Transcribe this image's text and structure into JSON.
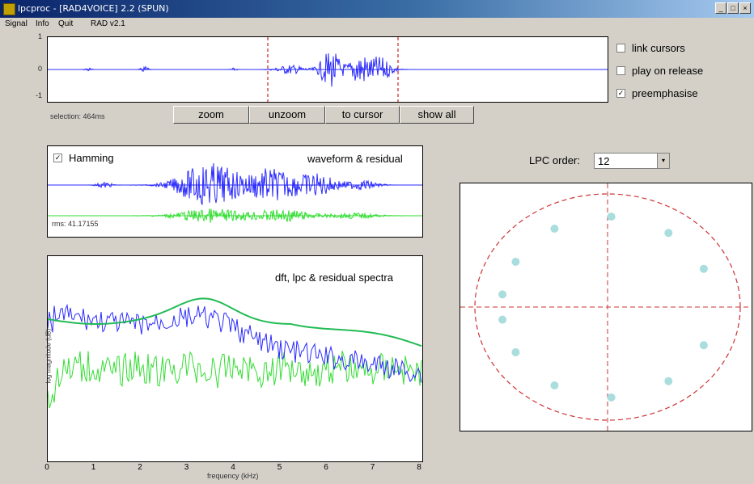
{
  "window": {
    "title": "lpcproc - [RAD4VOICE] 2.2 (SPUN)",
    "minimize": "_",
    "maximize": "□",
    "close": "×"
  },
  "menu": {
    "signal": "Signal",
    "info": "Info",
    "quit": "Quit",
    "version": "RAD v2.1"
  },
  "top_axes": {
    "y_ticks": [
      "1",
      "0",
      "-1"
    ],
    "selection_text": "selection: 464ms"
  },
  "buttons": {
    "zoom": "zoom",
    "unzoom": "unzoom",
    "to_cursor": "to cursor",
    "show_all": "show all"
  },
  "options": {
    "link_cursors": {
      "label": "link cursors",
      "checked": false
    },
    "play_on_release": {
      "label": "play on release",
      "checked": false
    },
    "preemphasise": {
      "label": "preemphasise",
      "checked": true
    },
    "check_mark": "✓"
  },
  "waveform_panel": {
    "hamming_label": "Hamming",
    "hamming_checked": true,
    "title": "waveform & residual",
    "rms_text": "rms: 41.17155"
  },
  "spectra_panel": {
    "title": "dft, lpc & residual spectra",
    "xlabel": "frequency (kHz)",
    "ylabel": "log magnitude (dB)",
    "x_ticks": [
      "0",
      "1",
      "2",
      "3",
      "4",
      "5",
      "6",
      "7",
      "8"
    ]
  },
  "lpc": {
    "label": "LPC order:",
    "value": "12",
    "arrow": "▾"
  },
  "colors": {
    "signal": "#2b2bff",
    "residual": "#33dd33",
    "lpc_fit": "#22bb55",
    "cursor": "#cc2222",
    "poles": "#aadddd"
  }
}
